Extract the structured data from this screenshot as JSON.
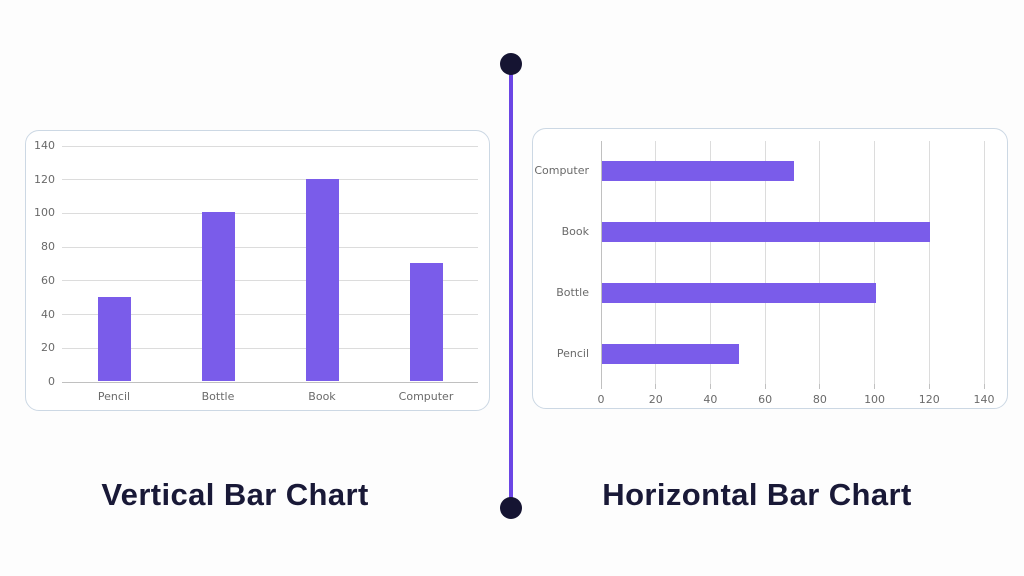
{
  "theme": {
    "background": "#fdfdfd",
    "card_background": "#ffffff",
    "card_border": "#ccd8e4",
    "gridline": "#dcdcdc",
    "axis_line": "#c0c0c0",
    "tick_label_color": "#6a6a6a",
    "bar_color": "#7a5cea",
    "divider_line_color": "#6b46e5",
    "divider_dot_color": "#151432",
    "title_color": "#191937"
  },
  "chart_data": [
    {
      "type": "bar",
      "orientation": "vertical",
      "title": "Vertical Bar Chart",
      "categories": [
        "Pencil",
        "Bottle",
        "Book",
        "Computer"
      ],
      "values": [
        50,
        100,
        120,
        70
      ],
      "yticks": [
        0,
        20,
        40,
        60,
        80,
        100,
        120,
        140
      ],
      "ylim": [
        0,
        140
      ],
      "xlabel": "",
      "ylabel": "",
      "grid": true,
      "legend": false,
      "bar_color": "#7a5cea"
    },
    {
      "type": "bar",
      "orientation": "horizontal",
      "title": "Horizontal Bar Chart",
      "categories": [
        "Computer",
        "Book",
        "Bottle",
        "Pencil"
      ],
      "values": [
        70,
        120,
        100,
        50
      ],
      "xticks": [
        0,
        20,
        40,
        60,
        80,
        100,
        120,
        140
      ],
      "xlim": [
        0,
        140
      ],
      "xlabel": "",
      "ylabel": "",
      "grid": true,
      "legend": false,
      "bar_color": "#7a5cea"
    }
  ]
}
